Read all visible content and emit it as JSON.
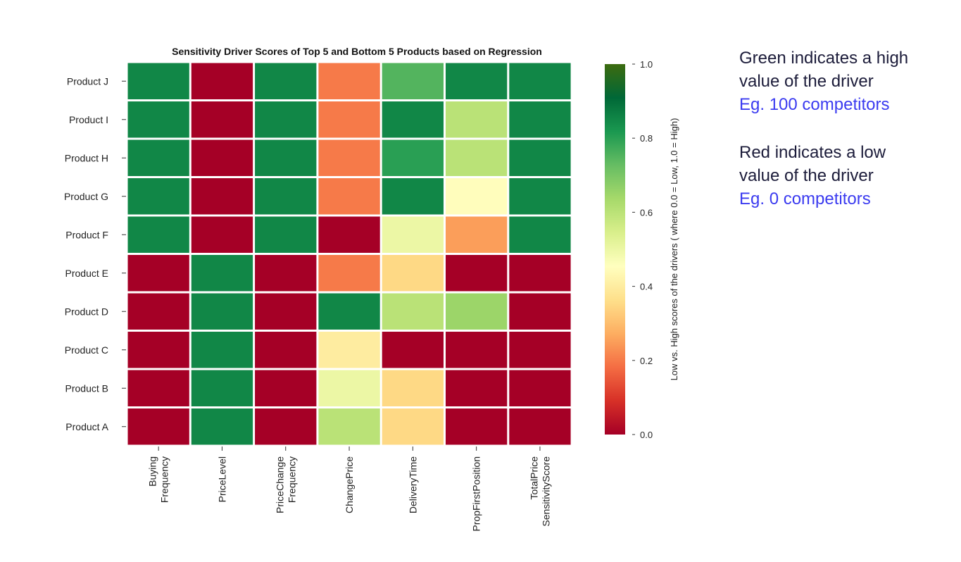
{
  "chart_data": {
    "type": "heatmap",
    "title": "Sensitivity Driver Scores of Top 5 and Bottom 5 Products based on Regression",
    "rows": [
      "Product J",
      "Product I",
      "Product H",
      "Product G",
      "Product F",
      "Product E",
      "Product D",
      "Product C",
      "Product B",
      "Product A"
    ],
    "columns": [
      [
        "Buying",
        "Frequency"
      ],
      [
        "PriceLevel"
      ],
      [
        "PriceChange",
        "Frequency"
      ],
      [
        "ChangePrice"
      ],
      [
        "DeliveryTime"
      ],
      [
        "PropFirstPosition"
      ],
      [
        "TotalPrice",
        "SensitivityScore"
      ]
    ],
    "values": [
      [
        0.85,
        0.0,
        0.85,
        0.2,
        0.75,
        0.85,
        0.85
      ],
      [
        0.85,
        0.0,
        0.85,
        0.2,
        0.85,
        0.6,
        0.85
      ],
      [
        0.85,
        0.0,
        0.85,
        0.2,
        0.8,
        0.6,
        0.85
      ],
      [
        0.85,
        0.0,
        0.85,
        0.2,
        0.85,
        0.45,
        0.85
      ],
      [
        0.85,
        0.0,
        0.85,
        0.0,
        0.5,
        0.25,
        0.85
      ],
      [
        0.0,
        0.85,
        0.0,
        0.2,
        0.35,
        0.0,
        0.0
      ],
      [
        0.0,
        0.85,
        0.0,
        0.85,
        0.6,
        0.65,
        0.0
      ],
      [
        0.0,
        0.85,
        0.0,
        0.4,
        0.0,
        0.0,
        0.0
      ],
      [
        0.0,
        0.85,
        0.0,
        0.5,
        0.35,
        0.0,
        0.0
      ],
      [
        0.0,
        0.85,
        0.0,
        0.6,
        0.35,
        0.0,
        0.0
      ]
    ],
    "colorbar": {
      "label": "Low vs. High scores of the drivers ( where 0.0 = Low, 1.0 = High)",
      "ticks": [
        0.0,
        0.2,
        0.4,
        0.6,
        0.8,
        1.0
      ],
      "tick_labels": [
        "0.0",
        "0.2",
        "0.4",
        "0.6",
        "0.8",
        "1.0"
      ],
      "range": [
        0,
        1
      ],
      "colors": [
        "#a50026",
        "#d73027",
        "#f46d43",
        "#fdae61",
        "#fee08b",
        "#ffffbf",
        "#d9ef8b",
        "#a6d96a",
        "#66bd63",
        "#1a9850",
        "#006837",
        "#3d6b0f"
      ]
    }
  },
  "annotations": {
    "green": {
      "line1": "Green indicates a high",
      "line2": "value of the driver",
      "example": "Eg. 100 competitors"
    },
    "red": {
      "line1": "Red indicates a low",
      "line2": "value of the driver",
      "example": "Eg. 0 competitors"
    }
  }
}
